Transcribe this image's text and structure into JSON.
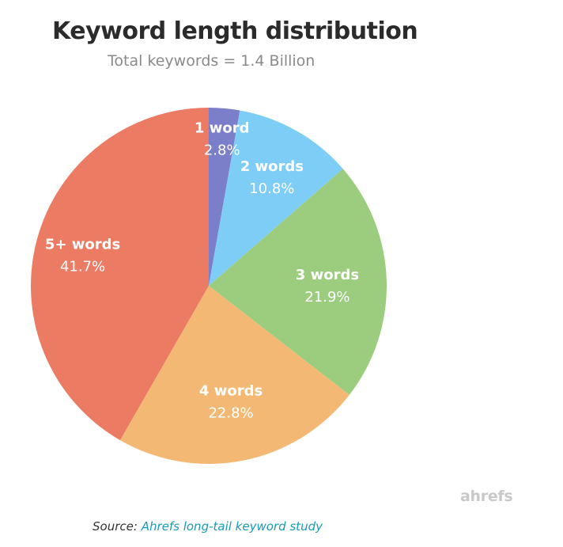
{
  "chart_data": {
    "type": "pie",
    "title": "Keyword length distribution",
    "subtitle": "Total keywords = 1.4 Billion",
    "slices": [
      {
        "label": "1 word",
        "value": 2.8,
        "value_label": "2.8%",
        "color": "#7b7ec9"
      },
      {
        "label": "2 words",
        "value": 10.8,
        "value_label": "10.8%",
        "color": "#7ecdf6"
      },
      {
        "label": "3 words",
        "value": 21.9,
        "value_label": "21.9%",
        "color": "#9ccd7e"
      },
      {
        "label": "4 words",
        "value": 22.8,
        "value_label": "22.8%",
        "color": "#f3b974"
      },
      {
        "label": "5+ words",
        "value": 41.7,
        "value_label": "41.7%",
        "color": "#ec7b64"
      }
    ],
    "start": "top",
    "direction": "clockwise"
  },
  "watermark": "ahrefs",
  "source": {
    "prefix": "Source:",
    "link_text": "Ahrefs long-tail keyword study"
  }
}
